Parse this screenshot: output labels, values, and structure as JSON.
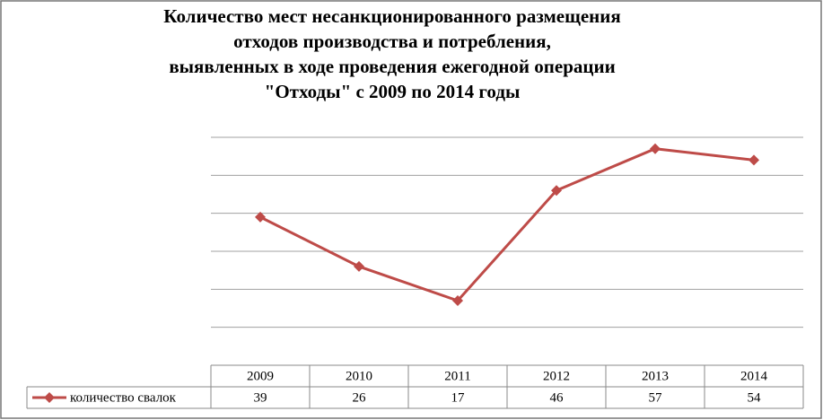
{
  "chart_data": {
    "type": "line",
    "title": [
      "Количество мест несанкционированного размещения",
      "отходов производства и потребления,",
      "выявленных в ходе проведения ежегодной операции",
      "\"Отходы\" с 2009 по 2014 годы"
    ],
    "categories": [
      "2009",
      "2010",
      "2011",
      "2012",
      "2013",
      "2014"
    ],
    "series": [
      {
        "name": "количество свалок",
        "color": "#be4b48",
        "values": [
          39,
          26,
          17,
          46,
          57,
          54
        ]
      }
    ],
    "ylim": [
      0,
      60
    ],
    "yticks": [
      0,
      10,
      20,
      30,
      40,
      50,
      60
    ],
    "grid": true,
    "data_table": true
  }
}
